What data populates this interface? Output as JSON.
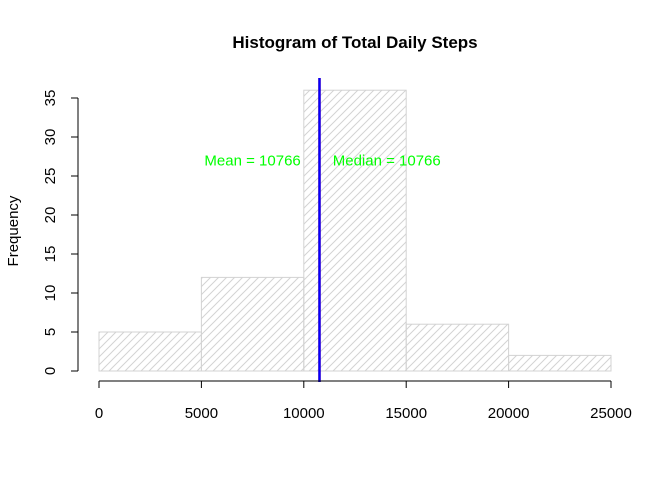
{
  "chart_data": {
    "type": "bar",
    "title": "Histogram of Total Daily Steps",
    "xlabel": "",
    "ylabel": "Frequency",
    "bins": [
      {
        "from": 0,
        "to": 5000,
        "count": 5
      },
      {
        "from": 5000,
        "to": 10000,
        "count": 12
      },
      {
        "from": 10000,
        "to": 15000,
        "count": 36
      },
      {
        "from": 15000,
        "to": 20000,
        "count": 6
      },
      {
        "from": 20000,
        "to": 25000,
        "count": 2
      }
    ],
    "xlim": [
      0,
      25000
    ],
    "ylim": [
      0,
      35
    ],
    "x_ticks": [
      0,
      5000,
      10000,
      15000,
      20000,
      25000
    ],
    "y_ticks": [
      0,
      5,
      10,
      15,
      20,
      25,
      30,
      35
    ],
    "bar_fill": "hatched",
    "bar_color": "#d3d3d3",
    "mean": 10766,
    "median": 10766,
    "mean_line_color": "#ff0000",
    "median_line_color": "#0000ff",
    "annotations": [
      {
        "text": "Mean =  10766",
        "x": 7500,
        "y": 27,
        "color": "#00ff00"
      },
      {
        "text": "Median =  10766",
        "x": 14050,
        "y": 27,
        "color": "#00ff00"
      }
    ],
    "grid": false
  }
}
